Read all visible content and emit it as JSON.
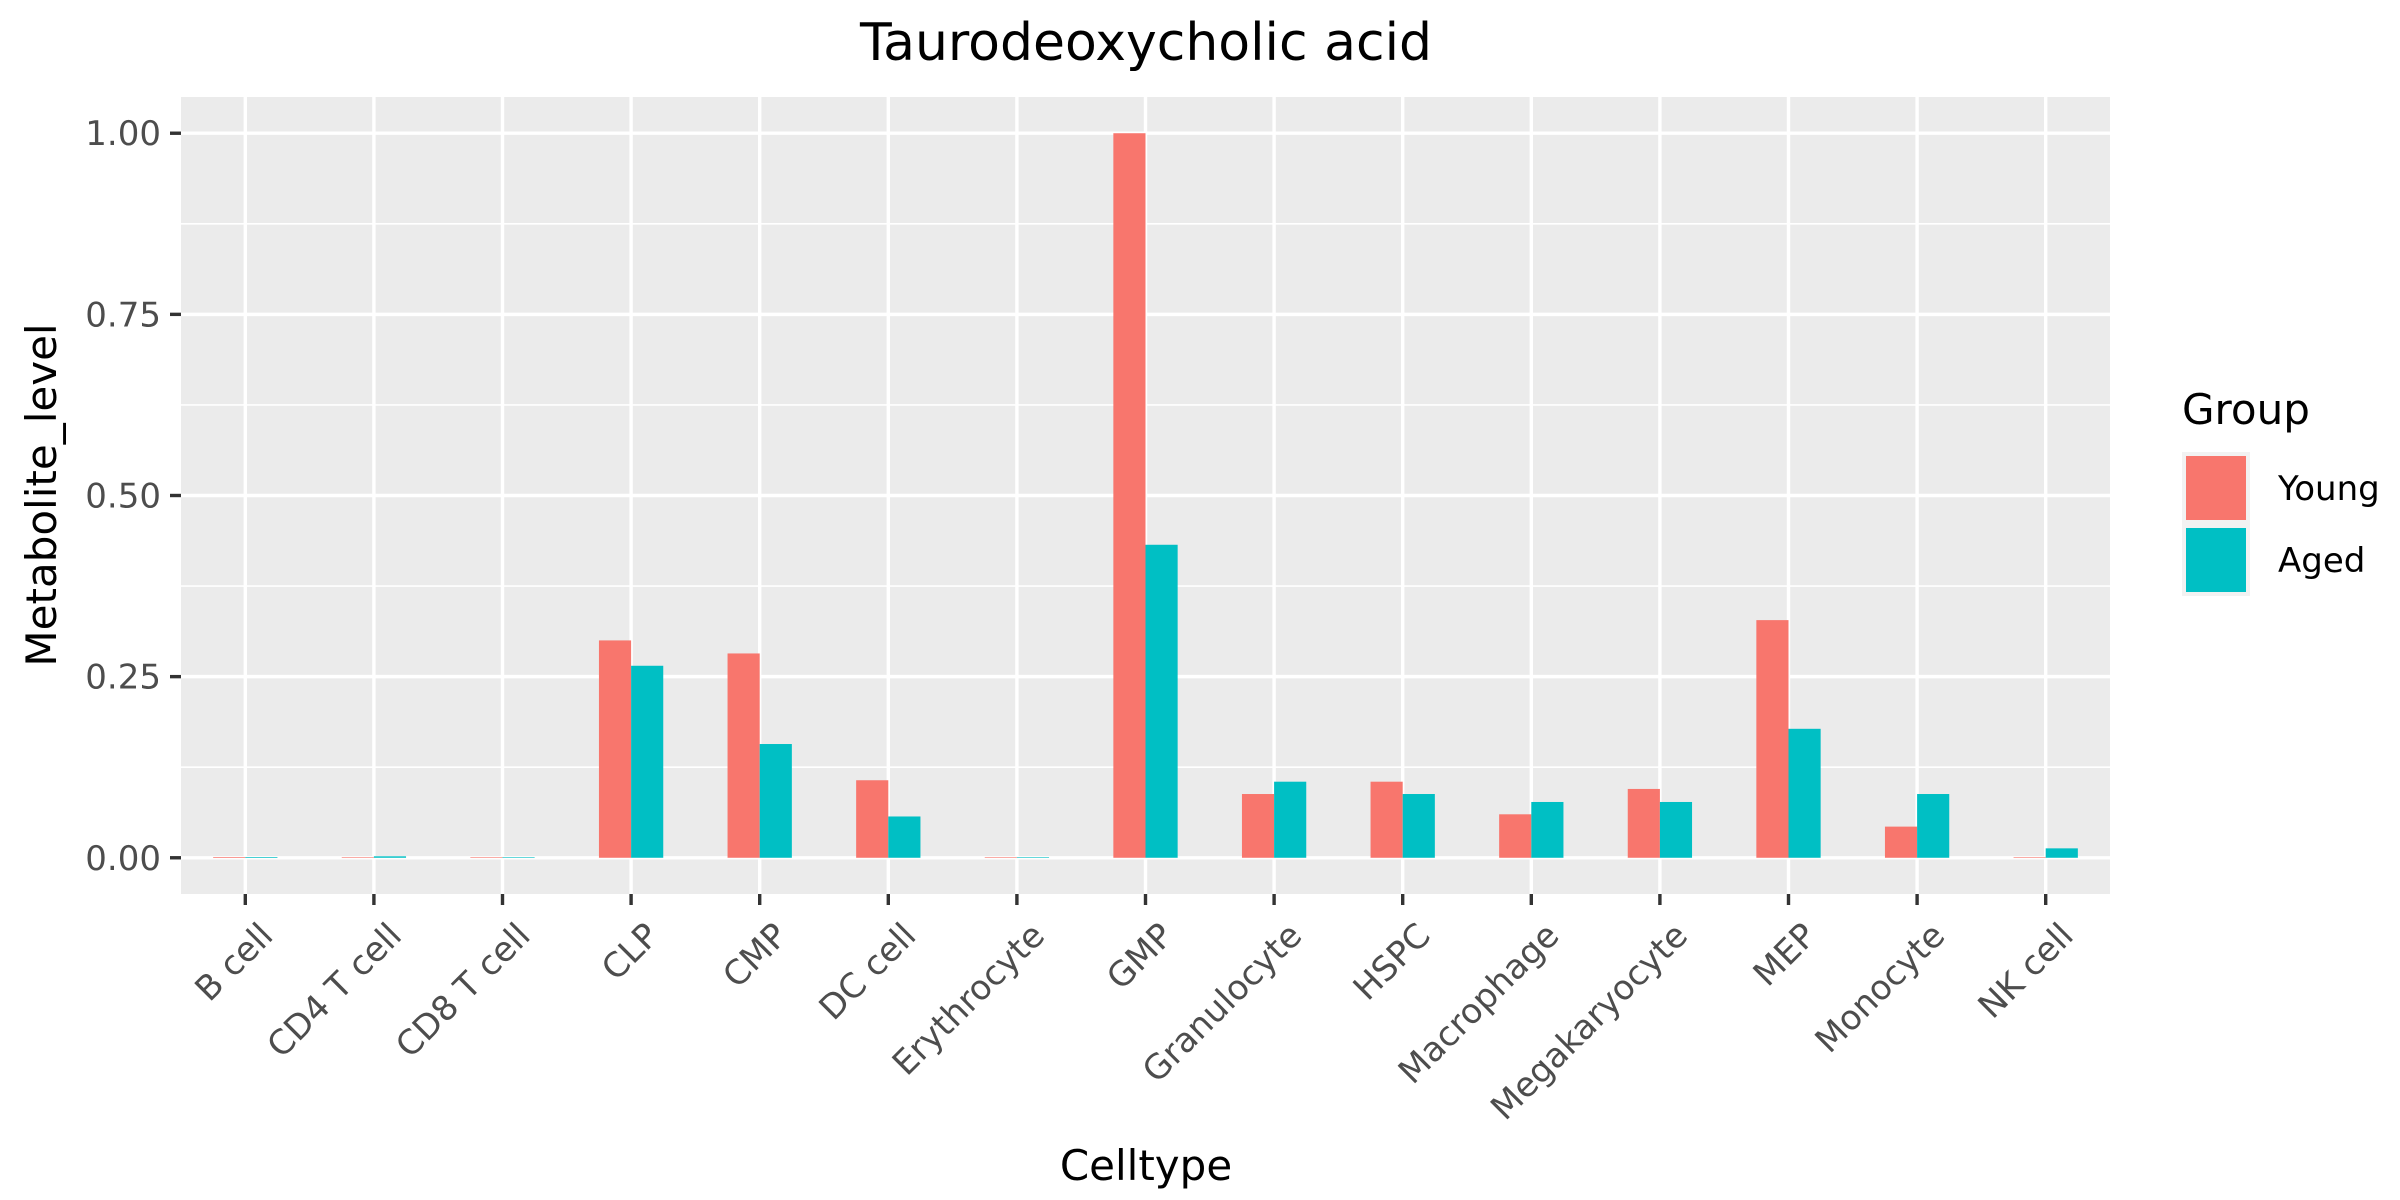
{
  "chart_data": {
    "type": "bar",
    "title": "Taurodeoxycholic acid",
    "xlabel": "Celltype",
    "ylabel": "Metabolite_level",
    "ylim": [
      -0.05,
      1.05
    ],
    "yticks": [
      0.0,
      0.25,
      0.5,
      0.75,
      1.0
    ],
    "ytick_labels": [
      "0.00",
      "0.25",
      "0.50",
      "0.75",
      "1.00"
    ],
    "grid": true,
    "legend": {
      "title": "Group",
      "position": "right"
    },
    "categories": [
      "B cell",
      "CD4 T cell",
      "CD8 T cell",
      "CLP",
      "CMP",
      "DC cell",
      "Erythrocyte",
      "GMP",
      "Granulocyte",
      "HSPC",
      "Macrophage",
      "Megakaryocyte",
      "MEP",
      "Monocyte",
      "NK cell"
    ],
    "series": [
      {
        "name": "Young",
        "color": "#F8766D",
        "values": [
          0.001,
          0.0,
          0.0,
          0.3,
          0.282,
          0.107,
          0.0,
          1.0,
          0.088,
          0.105,
          0.06,
          0.095,
          0.328,
          0.043,
          0.0
        ]
      },
      {
        "name": "Aged",
        "color": "#00BFC4",
        "values": [
          0.001,
          0.002,
          0.0,
          0.265,
          0.157,
          0.057,
          0.0,
          0.432,
          0.105,
          0.088,
          0.077,
          0.077,
          0.178,
          0.088,
          0.013
        ]
      }
    ]
  }
}
